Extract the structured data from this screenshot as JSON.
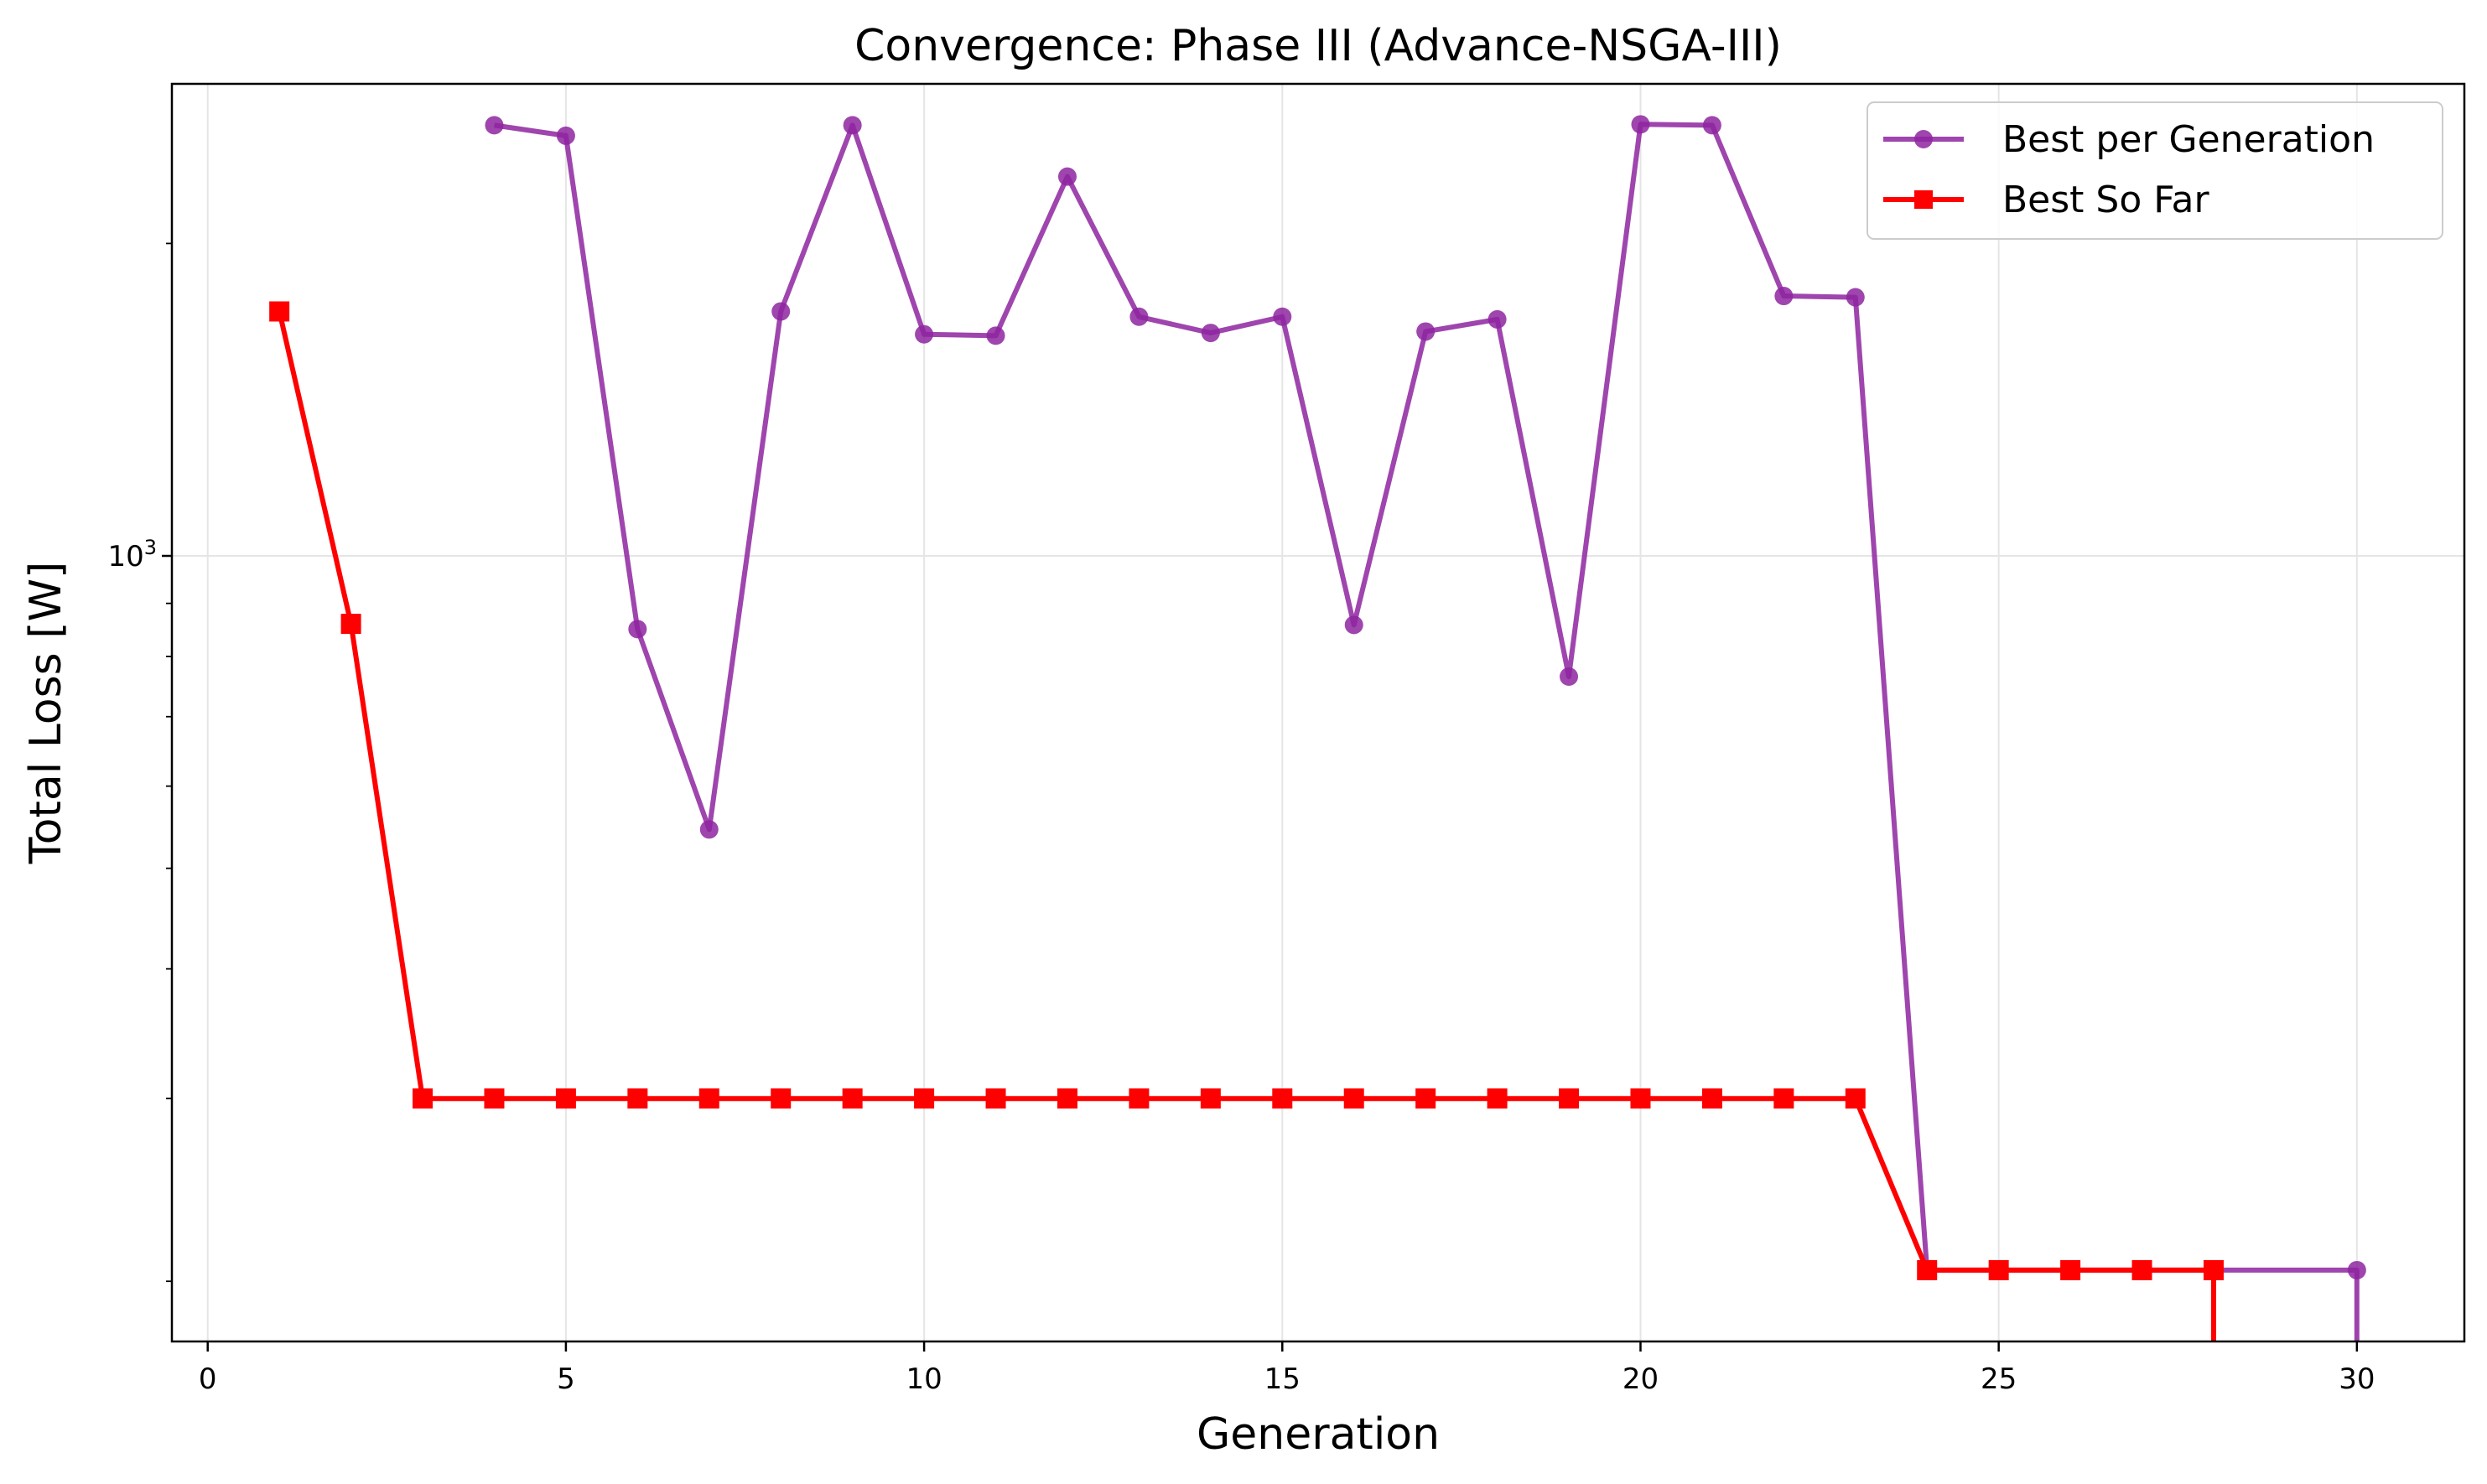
{
  "chart_data": {
    "type": "line",
    "title": "Convergence: Phase III (Advance-NSGA-III)",
    "xlabel": "Generation",
    "ylabel": "Total Loss [W]",
    "yscale": "log",
    "xlim": [
      -0.5,
      31.5
    ],
    "ylim": [
      175,
      2850
    ],
    "grid": true,
    "legend_position": "top-right",
    "x_ticks": [
      0,
      5,
      10,
      15,
      20,
      25,
      30
    ],
    "y_ticks": [
      {
        "value": 1000,
        "label": "10",
        "exponent": "3"
      }
    ],
    "series": [
      {
        "name": "Best per Generation",
        "color": "#8e24a0",
        "marker": "circle",
        "points": [
          [
            4,
            2600
          ],
          [
            5,
            2540
          ],
          [
            6,
            850
          ],
          [
            7,
            545
          ],
          [
            8,
            1720
          ],
          [
            9,
            2600
          ],
          [
            10,
            1635
          ],
          [
            11,
            1630
          ],
          [
            12,
            2320
          ],
          [
            13,
            1700
          ],
          [
            14,
            1640
          ],
          [
            15,
            1700
          ],
          [
            16,
            858
          ],
          [
            17,
            1645
          ],
          [
            18,
            1690
          ],
          [
            19,
            765
          ],
          [
            20,
            2605
          ],
          [
            21,
            2600
          ],
          [
            22,
            1780
          ],
          [
            23,
            1775
          ],
          [
            24,
            205
          ],
          [
            30,
            205
          ],
          [
            30,
            150
          ]
        ]
      },
      {
        "name": "Best So Far",
        "color": "#ff0000",
        "marker": "square",
        "points": [
          [
            1,
            1720
          ],
          [
            2,
            860
          ],
          [
            3,
            300
          ],
          [
            4,
            300
          ],
          [
            5,
            300
          ],
          [
            6,
            300
          ],
          [
            7,
            300
          ],
          [
            8,
            300
          ],
          [
            9,
            300
          ],
          [
            10,
            300
          ],
          [
            11,
            300
          ],
          [
            12,
            300
          ],
          [
            13,
            300
          ],
          [
            14,
            300
          ],
          [
            15,
            300
          ],
          [
            16,
            300
          ],
          [
            17,
            300
          ],
          [
            18,
            300
          ],
          [
            19,
            300
          ],
          [
            20,
            300
          ],
          [
            21,
            300
          ],
          [
            22,
            300
          ],
          [
            23,
            300
          ],
          [
            24,
            205
          ],
          [
            25,
            205
          ],
          [
            26,
            205
          ],
          [
            27,
            205
          ],
          [
            28,
            205
          ],
          [
            28,
            150
          ]
        ]
      }
    ]
  }
}
